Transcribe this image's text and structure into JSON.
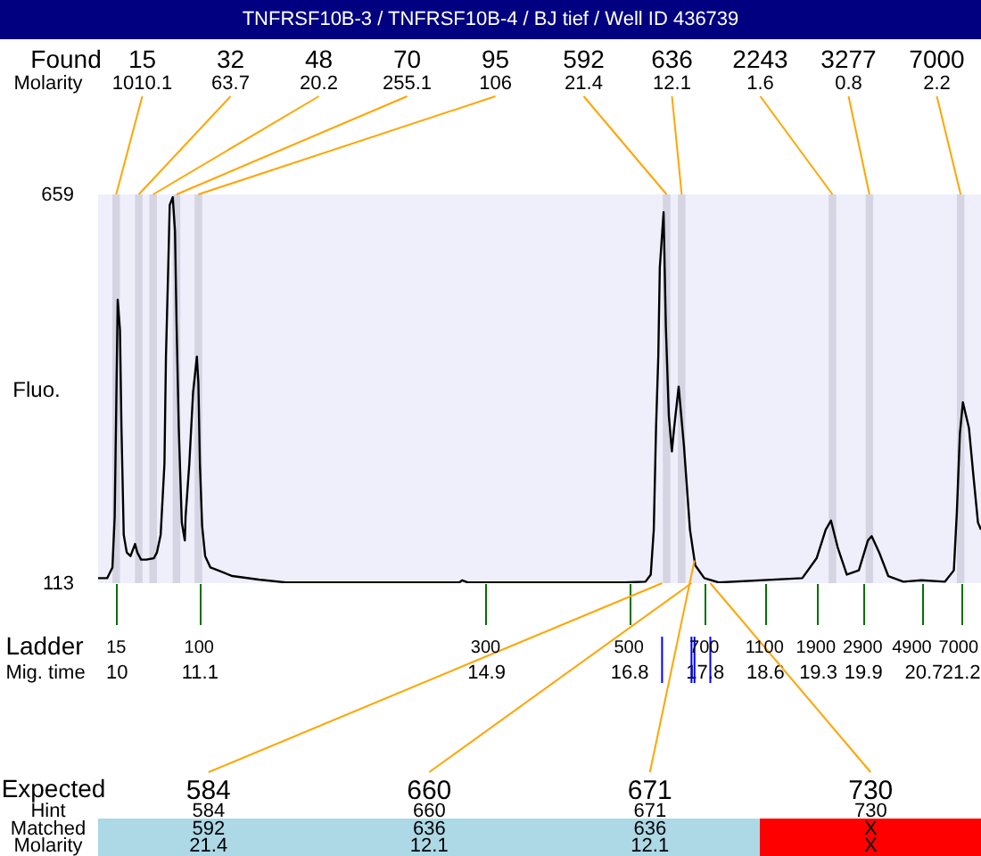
{
  "chart_data": {
    "type": "line",
    "title": "TNFRSF10B-3 / TNFRSF10B-4 / BJ tief / Well ID 436739",
    "ylabel": "Fluo.",
    "xlabel": "Mig. time",
    "xlim": [
      9.76,
      21.47
    ],
    "ylim": [
      113,
      659
    ],
    "yticks": [
      113,
      659
    ],
    "xticks": [
      10,
      11.1,
      14.9,
      16.8,
      17.8,
      18.6,
      19.3,
      19.9,
      20.7,
      21.2
    ],
    "grid": false,
    "color": "#000000",
    "x": [
      9.76,
      9.88,
      9.95,
      9.98,
      10.0,
      10.02,
      10.05,
      10.07,
      10.1,
      10.14,
      10.19,
      10.25,
      10.28,
      10.33,
      10.4,
      10.5,
      10.54,
      10.59,
      10.64,
      10.66,
      10.69,
      10.71,
      10.75,
      10.78,
      10.8,
      10.83,
      10.87,
      10.91,
      10.92,
      10.97,
      11.02,
      11.07,
      11.09,
      11.11,
      11.14,
      11.18,
      11.25,
      11.35,
      11.54,
      11.89,
      12.25,
      14.55,
      14.59,
      14.66,
      16.74,
      17.02,
      17.09,
      17.13,
      17.16,
      17.19,
      17.21,
      17.26,
      17.29,
      17.33,
      17.37,
      17.4,
      17.46,
      17.53,
      17.61,
      17.68,
      17.8,
      17.99,
      19.1,
      19.29,
      19.41,
      19.48,
      19.57,
      19.69,
      19.85,
      19.97,
      20.02,
      20.12,
      20.24,
      20.44,
      20.68,
      20.99,
      21.11,
      21.15,
      21.19,
      21.23,
      21.31,
      21.37,
      21.43,
      21.47
    ],
    "values": [
      120,
      120,
      135,
      206,
      356,
      511,
      469,
      331,
      181,
      156,
      151,
      168,
      156,
      146,
      146,
      148,
      156,
      181,
      281,
      431,
      556,
      644,
      655,
      607,
      481,
      331,
      198,
      173,
      206,
      281,
      381,
      431,
      394,
      281,
      193,
      151,
      135,
      131,
      123,
      118,
      114,
      114,
      117,
      114,
      114,
      115,
      125,
      188,
      331,
      431,
      556,
      634,
      474,
      348,
      298,
      331,
      389,
      306,
      188,
      138,
      120,
      114,
      120,
      148,
      188,
      201,
      163,
      125,
      131,
      173,
      179,
      156,
      123,
      115,
      117,
      115,
      131,
      213,
      323,
      367,
      331,
      263,
      198,
      188
    ],
    "bands": [
      {
        "axis": "x",
        "from": 9.95,
        "to": 10.05,
        "color": "#d4d4e2"
      },
      {
        "axis": "x",
        "from": 10.25,
        "to": 10.35,
        "color": "#d4d4e2"
      },
      {
        "axis": "x",
        "from": 10.44,
        "to": 10.54,
        "color": "#d4d4e2"
      },
      {
        "axis": "x",
        "from": 10.75,
        "to": 10.85,
        "color": "#d4d4e2"
      },
      {
        "axis": "x",
        "from": 11.04,
        "to": 11.14,
        "color": "#d4d4e2"
      },
      {
        "axis": "x",
        "from": 17.25,
        "to": 17.35,
        "color": "#d4d4e2"
      },
      {
        "axis": "x",
        "from": 17.45,
        "to": 17.55,
        "color": "#d4d4e2"
      },
      {
        "axis": "x",
        "from": 19.45,
        "to": 19.55,
        "color": "#d4d4e2"
      },
      {
        "axis": "x",
        "from": 19.94,
        "to": 20.04,
        "color": "#d4d4e2"
      },
      {
        "axis": "x",
        "from": 21.15,
        "to": 21.25,
        "color": "#d4d4e2"
      }
    ],
    "annotations": [
      "Found",
      "Molarity",
      {
        "text": "15",
        "x": 10.0,
        "y": 659
      },
      {
        "text": "32",
        "x": 10.3,
        "y": 659
      },
      {
        "text": "48",
        "x": 10.49,
        "y": 659
      },
      {
        "text": "70",
        "x": 10.8,
        "y": 659
      },
      {
        "text": "95",
        "x": 11.09,
        "y": 659
      },
      {
        "text": "592",
        "x": 17.3,
        "y": 659
      },
      {
        "text": "636",
        "x": 17.5,
        "y": 659
      },
      {
        "text": "2243",
        "x": 19.5,
        "y": 659
      },
      {
        "text": "3277",
        "x": 19.99,
        "y": 659
      },
      {
        "text": "7000",
        "x": 21.2,
        "y": 659
      },
      "1010.1",
      "63.7",
      "20.2",
      "255.1",
      "106",
      "21.4",
      "12.1",
      "1.6",
      "0.8",
      "2.2",
      "Ladder",
      "15",
      "100",
      "300",
      "500",
      "700",
      "1100",
      "1900",
      "2900",
      "4900",
      "7000",
      "Expected",
      "Hint",
      "Matched",
      "Molarity",
      {
        "text": "584",
        "x": 17.24,
        "y": 113
      },
      {
        "text": "660",
        "x": 17.63,
        "y": 113
      },
      {
        "text": "671",
        "x": 17.67,
        "y": 145
      },
      {
        "text": "730",
        "x": 17.88,
        "y": 113
      },
      "584",
      "660",
      "671",
      "730",
      "592",
      "636",
      "636",
      "X",
      "21.4",
      "12.1",
      "12.1",
      "X"
    ]
  }
}
